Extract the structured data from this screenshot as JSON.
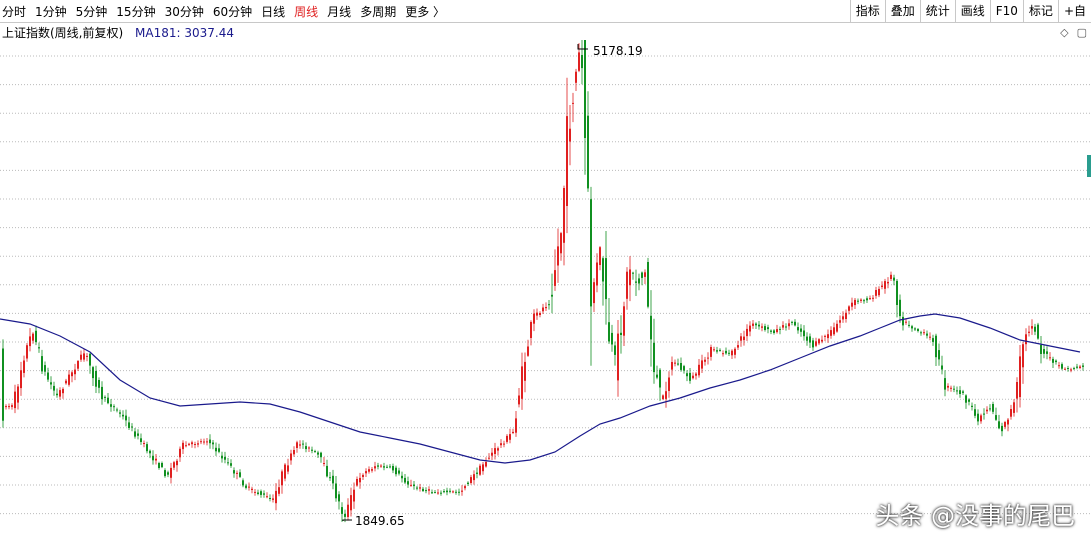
{
  "toolbar": {
    "periods": [
      "分时",
      "1分钟",
      "5分钟",
      "15分钟",
      "30分钟",
      "60分钟",
      "日线",
      "周线",
      "月线",
      "多周期",
      "更多 〉"
    ],
    "active_period": "周线",
    "tools": [
      "指标",
      "叠加",
      "统计",
      "画线",
      "F10",
      "标记",
      "+自"
    ]
  },
  "info": {
    "title": "上证指数(周线,前复权)",
    "ma_label": "MA181: 3037.44"
  },
  "chart": {
    "high_label": "5178.19",
    "low_label": "1849.65",
    "up_color": "#e02020",
    "down_color": "#109020",
    "ma_color": "#1a1a8c"
  },
  "watermark": "头条 @没事的尾巴"
}
